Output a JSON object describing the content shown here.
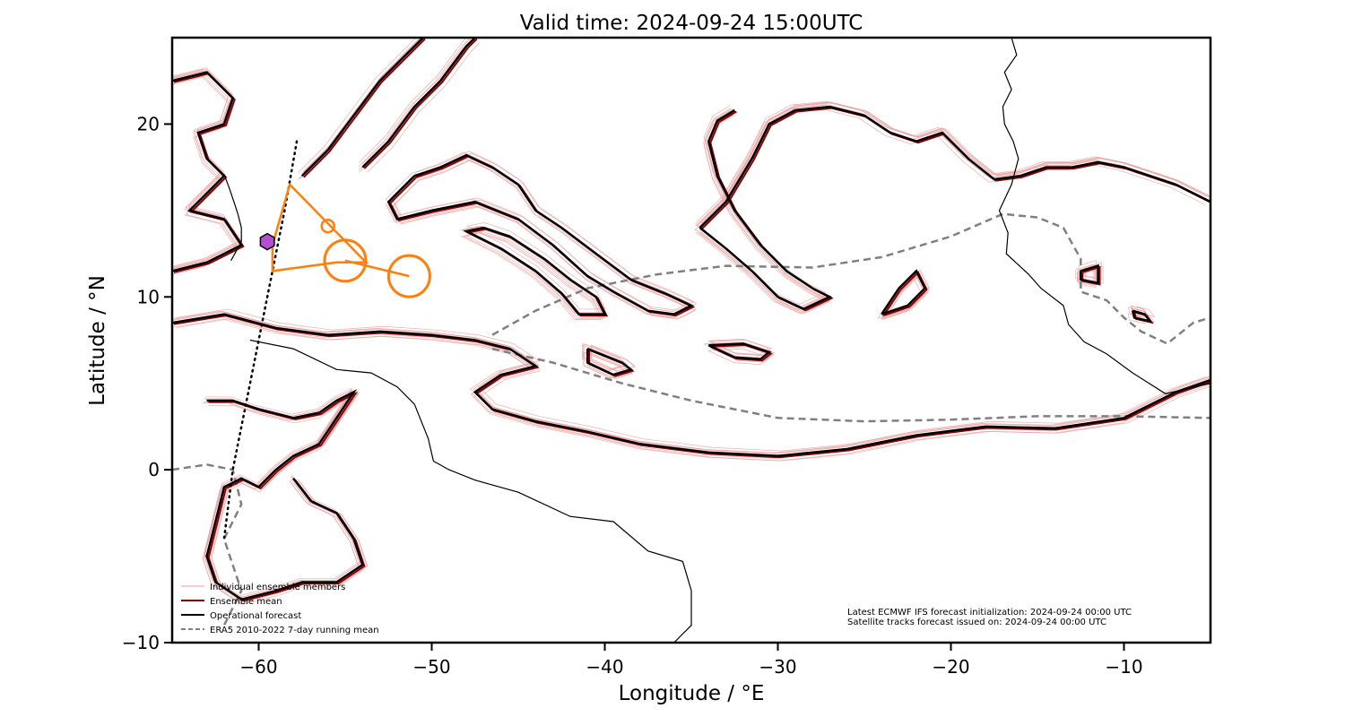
{
  "chart_data": {
    "type": "map",
    "title": "Valid time: 2024-09-24 15:00UTC",
    "xlabel": "Longitude / °E",
    "ylabel": "Latitude / °N",
    "xlim": [
      -65,
      -5
    ],
    "ylim": [
      -10,
      25
    ],
    "xticks": [
      -60,
      -50,
      -40,
      -30,
      -20,
      -10
    ],
    "yticks": [
      -10,
      0,
      10,
      20
    ],
    "xtick_labels": [
      "−60",
      "−50",
      "−40",
      "−30",
      "−20",
      "−10"
    ],
    "ytick_labels": [
      "−10",
      "0",
      "10",
      "20"
    ],
    "grid": false,
    "legend_position": "lower-left",
    "legend": [
      {
        "label": "Individual ensemble members",
        "color": "#e8a0a0",
        "style": "thin"
      },
      {
        "label": "Ensemble mean",
        "color": "#8b0000",
        "style": "solid"
      },
      {
        "label": "Operational forecast",
        "color": "#000000",
        "style": "solid"
      },
      {
        "label": "ERA5 2010-2022 7-day running mean",
        "color": "#808080",
        "style": "dashed"
      }
    ],
    "notes": [
      "Latest ECMWF IFS forecast initialization: 2024-09-24 00:00 UTC",
      "Satellite tracks forecast issued on: 2024-09-24 00:00 UTC"
    ],
    "colors": {
      "members": "#e8a0a0",
      "mean": "#8b0000",
      "operational": "#000000",
      "climatology": "#808080",
      "track": "#ff7f0e",
      "marker": "#b44fd0",
      "coast": "#000000"
    },
    "contours": [
      {
        "name": "north-band",
        "points": [
          [
            -57.5,
            17
          ],
          [
            -56,
            18.5
          ],
          [
            -54.5,
            20.5
          ],
          [
            -53,
            22.5
          ],
          [
            -51.5,
            24
          ],
          [
            -50.5,
            25
          ]
        ]
      },
      {
        "name": "north-band-2",
        "points": [
          [
            -54,
            17.5
          ],
          [
            -52.5,
            19
          ],
          [
            -51,
            21
          ],
          [
            -49.5,
            22.5
          ],
          [
            -48,
            24.5
          ],
          [
            -47.5,
            25
          ]
        ]
      },
      {
        "name": "western-blob",
        "points": [
          [
            -65,
            22.5
          ],
          [
            -63,
            23
          ],
          [
            -61.5,
            21.5
          ],
          [
            -62,
            20
          ],
          [
            -63.5,
            19.5
          ],
          [
            -63,
            18
          ],
          [
            -62,
            17
          ],
          [
            -63,
            16
          ],
          [
            -64,
            15
          ],
          [
            -62,
            14.5
          ],
          [
            -61,
            13
          ],
          [
            -62,
            12.5
          ],
          [
            -63,
            12
          ],
          [
            -65,
            11.5
          ]
        ]
      },
      {
        "name": "long-finger",
        "points": [
          [
            -51,
            17
          ],
          [
            -49.5,
            17.5
          ],
          [
            -48,
            18.2
          ],
          [
            -46.5,
            17.5
          ],
          [
            -45,
            16.5
          ],
          [
            -44,
            15
          ],
          [
            -42.5,
            14
          ],
          [
            -40.5,
            12.5
          ],
          [
            -38.5,
            11
          ],
          [
            -36.5,
            10.2
          ],
          [
            -35,
            9.5
          ],
          [
            -36,
            9
          ],
          [
            -37.5,
            9.2
          ],
          [
            -39.5,
            10.3
          ],
          [
            -41,
            11.2
          ],
          [
            -43,
            13
          ],
          [
            -45,
            14.5
          ],
          [
            -47.5,
            15.5
          ],
          [
            -50,
            15
          ],
          [
            -52,
            14.5
          ],
          [
            -52.5,
            15.5
          ],
          [
            -51,
            17
          ]
        ]
      },
      {
        "name": "mid-finger",
        "points": [
          [
            -47,
            14
          ],
          [
            -45.5,
            13.5
          ],
          [
            -43.5,
            12.2
          ],
          [
            -42,
            11
          ],
          [
            -40.5,
            10
          ],
          [
            -40,
            9
          ],
          [
            -41.5,
            9
          ],
          [
            -42.5,
            10.2
          ],
          [
            -44,
            11.5
          ],
          [
            -46,
            12.8
          ],
          [
            -48,
            13.8
          ],
          [
            -47,
            14
          ]
        ]
      },
      {
        "name": "small-tongue",
        "points": [
          [
            -41,
            7
          ],
          [
            -39,
            6.2
          ],
          [
            -38.5,
            5.8
          ],
          [
            -39.5,
            5.5
          ],
          [
            -41,
            6.2
          ],
          [
            -41,
            7
          ]
        ]
      },
      {
        "name": "big-loop",
        "points": [
          [
            -34.5,
            14
          ],
          [
            -33,
            15.5
          ],
          [
            -31.5,
            18
          ],
          [
            -30.5,
            20
          ],
          [
            -29,
            20.8
          ],
          [
            -27,
            21
          ],
          [
            -25,
            20.5
          ],
          [
            -23.5,
            19.5
          ],
          [
            -22,
            19
          ],
          [
            -20.5,
            19.5
          ],
          [
            -19,
            18
          ],
          [
            -17.5,
            16.8
          ],
          [
            -16,
            17
          ],
          [
            -14.5,
            17.5
          ],
          [
            -13,
            17.5
          ],
          [
            -11.5,
            17.8
          ],
          [
            -10,
            17.5
          ],
          [
            -8.5,
            17
          ],
          [
            -7,
            16.5
          ],
          [
            -5,
            15.5
          ]
        ]
      },
      {
        "name": "big-loop-inner",
        "points": [
          [
            -34.5,
            14
          ],
          [
            -33,
            12.8
          ],
          [
            -31.5,
            11.5
          ],
          [
            -30,
            10
          ],
          [
            -28.5,
            9.3
          ],
          [
            -27,
            10
          ],
          [
            -28,
            10.5
          ],
          [
            -29.5,
            11.5
          ],
          [
            -31,
            13
          ],
          [
            -32.5,
            15
          ],
          [
            -33.5,
            17
          ],
          [
            -34,
            19
          ],
          [
            -33.5,
            20.2
          ],
          [
            -32.5,
            20.8
          ]
        ]
      },
      {
        "name": "blob-east",
        "points": [
          [
            -24,
            9
          ],
          [
            -23,
            10.5
          ],
          [
            -22,
            11.5
          ],
          [
            -21.5,
            10.5
          ],
          [
            -22.5,
            9.5
          ],
          [
            -24,
            9
          ]
        ]
      },
      {
        "name": "blob-mid",
        "points": [
          [
            -34,
            7.2
          ],
          [
            -32,
            7.3
          ],
          [
            -30.5,
            6.8
          ],
          [
            -31,
            6.4
          ],
          [
            -32.5,
            6.5
          ],
          [
            -34,
            7.2
          ]
        ]
      },
      {
        "name": "blob-far-east-1",
        "points": [
          [
            -12.5,
            11.5
          ],
          [
            -11.5,
            11.8
          ],
          [
            -11.5,
            10.8
          ],
          [
            -12.5,
            11
          ],
          [
            -12.5,
            11.5
          ]
        ]
      },
      {
        "name": "blob-far-east-2",
        "points": [
          [
            -9.5,
            9.2
          ],
          [
            -8.8,
            9
          ],
          [
            -8.5,
            8.6
          ],
          [
            -9.4,
            8.8
          ],
          [
            -9.5,
            9.2
          ]
        ]
      },
      {
        "name": "south-band",
        "points": [
          [
            -65,
            8.5
          ],
          [
            -62,
            9
          ],
          [
            -59,
            8.2
          ],
          [
            -56,
            7.8
          ],
          [
            -53,
            8
          ],
          [
            -50,
            7.8
          ],
          [
            -47.5,
            7.5
          ],
          [
            -45.5,
            7
          ],
          [
            -44,
            6
          ],
          [
            -46,
            5.5
          ],
          [
            -47.5,
            4.5
          ],
          [
            -46.5,
            3.5
          ],
          [
            -44,
            2.8
          ],
          [
            -41,
            2.2
          ],
          [
            -38,
            1.5
          ],
          [
            -34,
            1
          ],
          [
            -30,
            0.8
          ],
          [
            -26,
            1.2
          ],
          [
            -22,
            2
          ],
          [
            -18,
            2.5
          ],
          [
            -14,
            2.4
          ],
          [
            -10,
            3
          ],
          [
            -7,
            4.5
          ],
          [
            -5,
            5.2
          ]
        ]
      },
      {
        "name": "sw-blob",
        "points": [
          [
            -63,
            4
          ],
          [
            -61.5,
            4
          ],
          [
            -60,
            3.5
          ],
          [
            -58,
            3
          ],
          [
            -56.5,
            3.3
          ],
          [
            -55.5,
            4
          ],
          [
            -54.5,
            4.5
          ],
          [
            -55.5,
            3
          ],
          [
            -56.5,
            1.5
          ],
          [
            -58,
            0.8
          ],
          [
            -59,
            0
          ],
          [
            -60,
            -1
          ],
          [
            -61,
            -0.5
          ],
          [
            -62,
            -1
          ],
          [
            -62.5,
            -3
          ],
          [
            -63,
            -5
          ],
          [
            -62.5,
            -6.5
          ],
          [
            -61,
            -7.5
          ],
          [
            -59,
            -7
          ],
          [
            -57.5,
            -6.5
          ],
          [
            -55.5,
            -6.5
          ],
          [
            -54,
            -5.5
          ],
          [
            -54.5,
            -4
          ],
          [
            -55.5,
            -2.5
          ],
          [
            -57,
            -1.8
          ],
          [
            -58,
            -0.5
          ]
        ]
      }
    ],
    "climatology": [
      {
        "name": "clim-north",
        "points": [
          [
            -46.5,
            7.8
          ],
          [
            -44,
            9.2
          ],
          [
            -41,
            10.5
          ],
          [
            -37,
            11.3
          ],
          [
            -33,
            11.8
          ],
          [
            -28,
            11.7
          ],
          [
            -24,
            12.3
          ],
          [
            -20,
            13.5
          ],
          [
            -17,
            14.8
          ],
          [
            -15,
            14.6
          ],
          [
            -13.5,
            14
          ],
          [
            -12.5,
            12.2
          ],
          [
            -12.5,
            10.3
          ],
          [
            -11,
            9.8
          ],
          [
            -10,
            8.8
          ],
          [
            -9,
            8
          ],
          [
            -7.5,
            7.3
          ],
          [
            -6,
            8.5
          ],
          [
            -5,
            8.8
          ]
        ]
      },
      {
        "name": "clim-south",
        "points": [
          [
            -46.5,
            7
          ],
          [
            -43,
            6.2
          ],
          [
            -39,
            5
          ],
          [
            -35,
            4
          ],
          [
            -30,
            3
          ],
          [
            -25,
            2.8
          ],
          [
            -20,
            2.9
          ],
          [
            -15,
            3.1
          ],
          [
            -10,
            3.1
          ],
          [
            -5,
            3
          ]
        ]
      },
      {
        "name": "clim-west",
        "points": [
          [
            -65,
            0
          ],
          [
            -63,
            0.3
          ],
          [
            -61.5,
            0
          ],
          [
            -61,
            -2
          ],
          [
            -62,
            -4
          ],
          [
            -61,
            -7
          ],
          [
            -62,
            -9
          ]
        ]
      }
    ],
    "coastlines": [
      {
        "name": "south-america",
        "points": [
          [
            -60.5,
            7.5
          ],
          [
            -58,
            7
          ],
          [
            -55.5,
            5.8
          ],
          [
            -53.5,
            5.6
          ],
          [
            -52,
            4.8
          ],
          [
            -51,
            3.8
          ],
          [
            -50.2,
            1.8
          ],
          [
            -49.9,
            0.5
          ],
          [
            -49,
            0
          ],
          [
            -47.5,
            -0.6
          ],
          [
            -45,
            -1.3
          ],
          [
            -42,
            -2.7
          ],
          [
            -39.5,
            -3
          ],
          [
            -37.5,
            -4.7
          ],
          [
            -35.5,
            -5.3
          ],
          [
            -35,
            -7
          ],
          [
            -35,
            -9
          ],
          [
            -36,
            -10
          ]
        ]
      },
      {
        "name": "africa",
        "points": [
          [
            -16.5,
            25
          ],
          [
            -16.2,
            24
          ],
          [
            -16.9,
            23
          ],
          [
            -16.5,
            22
          ],
          [
            -17,
            21
          ],
          [
            -16.9,
            20
          ],
          [
            -16.4,
            19
          ],
          [
            -16.1,
            18
          ],
          [
            -16.5,
            16.5
          ],
          [
            -17.2,
            15
          ],
          [
            -16.7,
            13.7
          ],
          [
            -16.8,
            12.5
          ],
          [
            -15.5,
            11.3
          ],
          [
            -14.8,
            10.5
          ],
          [
            -13.5,
            9.5
          ],
          [
            -13.2,
            8.4
          ],
          [
            -12.3,
            7.4
          ],
          [
            -11,
            6.7
          ],
          [
            -9.5,
            5.6
          ],
          [
            -7.6,
            4.4
          ],
          [
            -5,
            5
          ]
        ]
      },
      {
        "name": "caribbean-islands",
        "points": [
          [
            -61.6,
            12.1
          ],
          [
            -61,
            13.2
          ],
          [
            -61,
            14
          ],
          [
            -61.2,
            14.8
          ],
          [
            -61.4,
            15.4
          ],
          [
            -61.7,
            16.3
          ],
          [
            -62,
            17.1
          ]
        ]
      }
    ],
    "track_triangle": [
      [
        -58.2,
        16.5
      ],
      [
        -59.2,
        13
      ],
      [
        -59.2,
        11.5
      ],
      [
        -55.5,
        12
      ],
      [
        -53.8,
        12
      ]
    ],
    "track_small_circle": {
      "lon": -56,
      "lat": 14.1
    },
    "track_circles": [
      {
        "lon": -55,
        "lat": 12.1
      },
      {
        "lon": -51.3,
        "lat": 11.2
      }
    ],
    "marker": {
      "lon": -59.5,
      "lat": 13.2
    },
    "satellite_track": [
      [
        -57.8,
        19
      ],
      [
        -58.5,
        15
      ],
      [
        -59.5,
        10
      ],
      [
        -60.5,
        5
      ],
      [
        -61.5,
        0
      ],
      [
        -62,
        -4
      ]
    ]
  }
}
